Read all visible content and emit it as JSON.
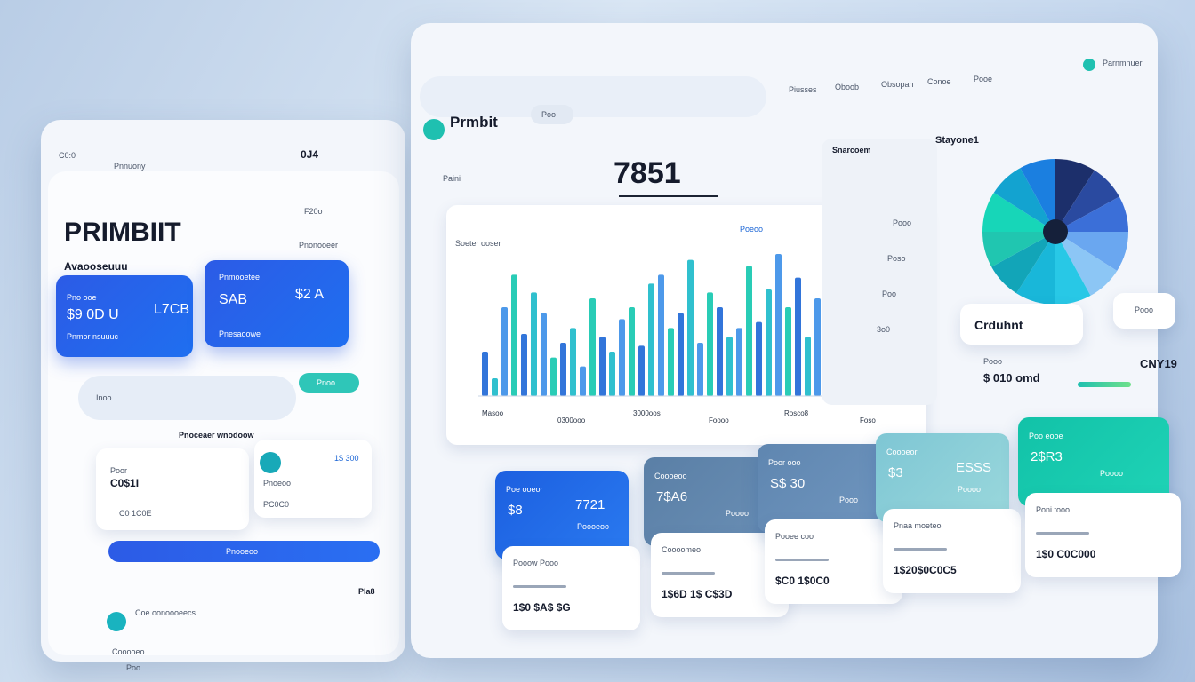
{
  "phone": {
    "status_left": "C0:0",
    "status_right": "0J4",
    "header": "Pnnuony",
    "header_right": "F20o",
    "title": "PRIMBIIT",
    "subtitle": "Avaooseuuu",
    "tag": "Pnonooeer",
    "cards": [
      {
        "label": "Pno ooe",
        "value": "$9 0D U",
        "value2": "L7CB",
        "foot": "Pnmor nsuuuc"
      },
      {
        "label": "Pnmooetee",
        "value": "SAB",
        "value2": "$2 A",
        "foot": "Pnesaoowe"
      }
    ],
    "search": "Inoo",
    "toggle": "Pnoo",
    "section": "Pnoceaer wnodoow",
    "items": [
      {
        "label": "Poor",
        "value": "C0$1I",
        "foot": "C0 1C0E"
      },
      {
        "label": "Pnoeoo",
        "value": "1$ 300",
        "foot": "PC0C0"
      }
    ],
    "button": "Pnooeoo",
    "footer_right": "Pla8",
    "footer_label": "Coe oonoooeecs",
    "footer_a": "Cooooeo",
    "footer_b": "Poo"
  },
  "dashboard": {
    "logo": "Prmbit",
    "search": "Poo",
    "nav": [
      "Piusses",
      "Oboob",
      "Obsopan",
      "Conoe",
      "Pooe"
    ],
    "user": "Parnmnuer",
    "metric_label": "Paini",
    "metric_value": "7851",
    "chart_title": "Soeter ooser",
    "chart_link": "Poeoo",
    "chart": {
      "values": [
        30,
        12,
        60,
        82,
        42,
        70,
        56,
        26,
        36,
        46,
        20,
        66,
        40,
        30,
        52,
        60,
        34,
        76,
        82,
        46,
        56,
        92,
        36,
        70,
        60,
        40,
        46,
        88,
        50,
        72,
        96,
        60,
        80,
        40,
        66,
        76,
        46,
        30,
        20,
        40,
        24,
        36,
        20,
        16
      ],
      "colors": [
        "#1c66d6",
        "#19b9c9",
        "#3a8ee8",
        "#12c6ae"
      ],
      "x_labels": [
        "Masoo",
        "0300ooo",
        "3000oos",
        "Foooo",
        "Rosco8",
        "Foso"
      ]
    },
    "side_title": "Snarcoem",
    "side_labels": [
      "Pooo",
      "Poso",
      "Poo",
      "3o0"
    ],
    "pie_title": "Stayone1",
    "pie": {
      "values": [
        9,
        8,
        8,
        9,
        8,
        8,
        9,
        8,
        8,
        9,
        8,
        8
      ],
      "colors": [
        "#1c2f6b",
        "#2a4aa0",
        "#3b6fd8",
        "#6aa7f0",
        "#8cc6f5",
        "#28c8e6",
        "#19b7d9",
        "#12a5b8",
        "#20c6b0",
        "#17d6b8",
        "#13a3d0",
        "#1b7fe0"
      ]
    },
    "pie_label": "Crduhnt",
    "pie_badge": "Pooo",
    "stat_label": "Pooo",
    "stat_value": "$ 010 omd",
    "stat_right": "CNY19",
    "cards": [
      {
        "label": "Poe ooeor",
        "value": "$8",
        "value2": "7721",
        "sub": "Poooeoo",
        "bottom_label": "Pooow Pooo",
        "bottom_value": "1$0 $A$ $G"
      },
      {
        "label": "Coooeoo",
        "value": "7$A6",
        "sub": "Poooo",
        "bottom_label": "Coooomeo",
        "bottom_value": "1$6D 1$ C$3D"
      },
      {
        "label": "Poor ooo",
        "value": "S$ 30",
        "sub": "Pooo",
        "bottom_label": "Pooee coo",
        "bottom_value": "$C0 1$0C0"
      },
      {
        "label": "Coooeor",
        "value": "$3",
        "value2": "ESSS",
        "sub": "Poooo",
        "bottom_label": "Pnaa moeteo",
        "bottom_value": "1$20$0C0C5"
      },
      {
        "label": "Poo eooe",
        "value": "2$R3",
        "sub": "Poooo",
        "bottom_label": "Poni tooo",
        "bottom_value": "1$0 C0C000"
      }
    ]
  }
}
